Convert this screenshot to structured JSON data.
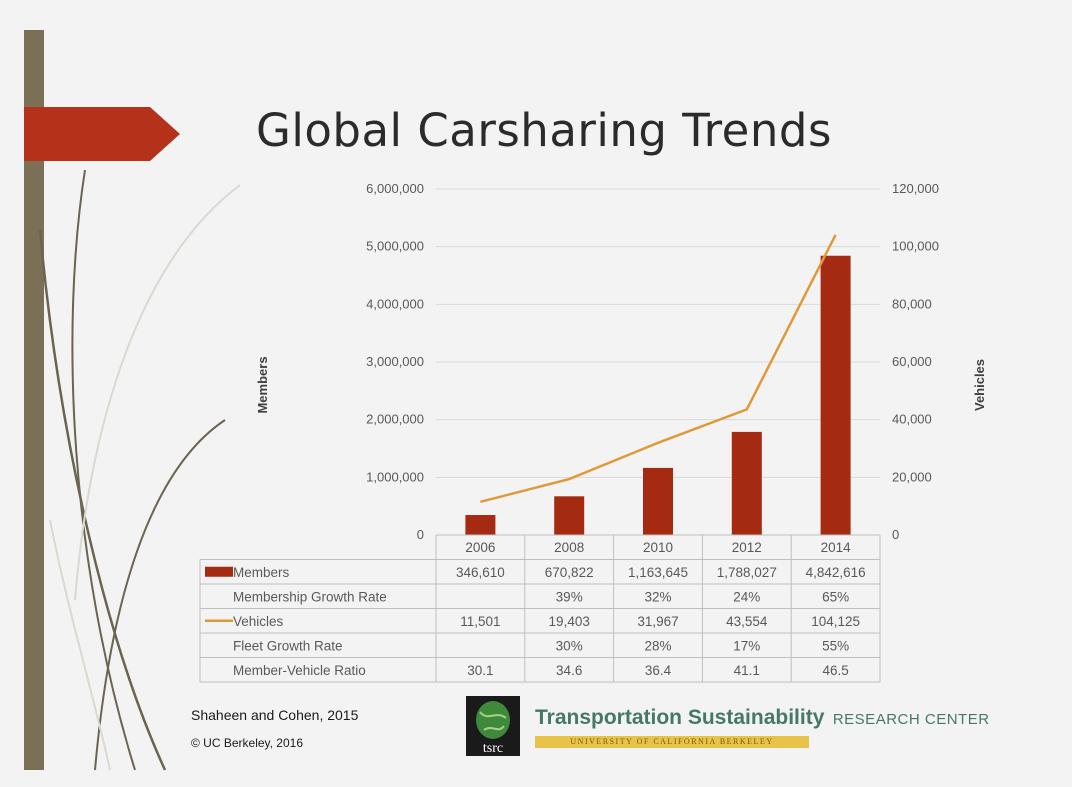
{
  "slide": {
    "title": "Global Carsharing Trends",
    "citation": "Shaheen and Cohen, 2015",
    "copyright": "© UC Berkeley, 2016"
  },
  "logo": {
    "mark_text": "tsrc",
    "name": "Transportation Sustainability",
    "sub": "RESEARCH CENTER",
    "university": "UNIVERSITY OF CALIFORNIA BERKELEY"
  },
  "colors": {
    "accent": "#b5321a",
    "bar": "#a52a12",
    "line": "#e0993a",
    "sidebar": "#7b7056"
  },
  "chart_data": {
    "type": "bar",
    "categories": [
      "2006",
      "2008",
      "2010",
      "2012",
      "2014"
    ],
    "series": [
      {
        "name": "Members",
        "type": "bar",
        "axis": "left",
        "values": [
          346610,
          670822,
          1163645,
          1788027,
          4842616
        ]
      },
      {
        "name": "Vehicles",
        "type": "line",
        "axis": "right",
        "values": [
          11501,
          19403,
          31967,
          43554,
          104125
        ]
      }
    ],
    "ylabel": "Members",
    "y2label": "Vehicles",
    "ylim": [
      0,
      6000000
    ],
    "y2lim": [
      0,
      120000
    ],
    "yticks": [
      "0",
      "1,000,000",
      "2,000,000",
      "3,000,000",
      "4,000,000",
      "5,000,000",
      "6,000,000"
    ],
    "y2ticks": [
      "0",
      "20,000",
      "40,000",
      "60,000",
      "80,000",
      "100,000",
      "120,000"
    ],
    "grid": true,
    "table": {
      "rows": [
        {
          "label": "Members",
          "marker": "bar",
          "cells": [
            "346,610",
            "670,822",
            "1,163,645",
            "1,788,027",
            "4,842,616"
          ]
        },
        {
          "label": "Membership Growth Rate",
          "marker": "",
          "cells": [
            "",
            "39%",
            "32%",
            "24%",
            "65%"
          ]
        },
        {
          "label": "Vehicles",
          "marker": "line",
          "cells": [
            "11,501",
            "19,403",
            "31,967",
            "43,554",
            "104,125"
          ]
        },
        {
          "label": "Fleet Growth Rate",
          "marker": "",
          "cells": [
            "",
            "30%",
            "28%",
            "17%",
            "55%"
          ]
        },
        {
          "label": "Member-Vehicle Ratio",
          "marker": "",
          "cells": [
            "30.1",
            "34.6",
            "36.4",
            "41.1",
            "46.5"
          ]
        }
      ]
    }
  }
}
